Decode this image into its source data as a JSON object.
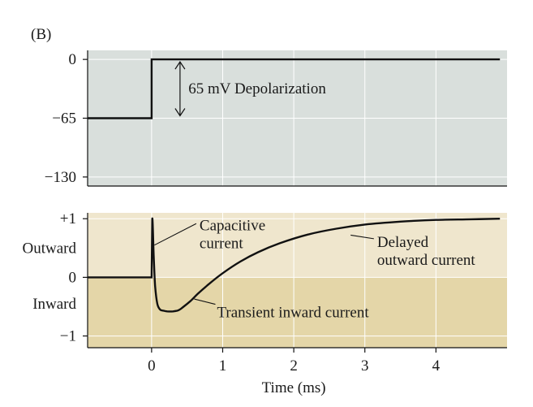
{
  "panel_label": "(B)",
  "colors": {
    "top_panel_bg": "#d9dfdc",
    "bottom_upper_bg": "#efe6cd",
    "bottom_lower_bg": "#e4d6a8",
    "grid": "#ffffff",
    "trace": "#111111",
    "axis": "#111111"
  },
  "chart_data": [
    {
      "type": "line",
      "name": "voltage",
      "xlim": [
        -0.9,
        5.0
      ],
      "ylim": [
        -140,
        10
      ],
      "yticks": [
        {
          "value": 0,
          "label": "0"
        },
        {
          "value": -65,
          "label": "−65"
        },
        {
          "value": -130,
          "label": "−130"
        }
      ],
      "grid": true,
      "series": [
        {
          "x": [
            -0.9,
            0,
            0,
            4.9
          ],
          "y": [
            -65,
            -65,
            0,
            0
          ]
        }
      ],
      "annotations": [
        {
          "text": "65 mV Depolarization",
          "x": 0.45,
          "y": -32,
          "arrow_from_y": 0,
          "arrow_to_y": -65,
          "arrow_x": 0.4
        }
      ]
    },
    {
      "type": "line",
      "name": "current",
      "xlim": [
        -0.9,
        5.0
      ],
      "ylim": [
        -1.2,
        1.1
      ],
      "yticks": [
        {
          "value": 1,
          "label": "+1"
        },
        {
          "value": 0,
          "label": "0"
        },
        {
          "value": -1,
          "label": "−1"
        }
      ],
      "ylabels_side": [
        {
          "text": "Outward",
          "y": 0.5
        },
        {
          "text": "Inward",
          "y": -0.45
        }
      ],
      "xticks": [
        0,
        1,
        2,
        3,
        4
      ],
      "xlabel": "Time (ms)",
      "grid": true,
      "series": [
        {
          "x": [
            -0.9,
            0,
            0.01,
            0.03,
            0.05,
            0.08,
            0.12,
            0.17,
            0.22,
            0.3,
            0.38,
            0.45,
            0.55,
            0.65,
            0.8,
            1.0,
            1.25,
            1.5,
            1.8,
            2.2,
            2.6,
            3.0,
            3.5,
            4.0,
            4.5,
            4.9
          ],
          "y": [
            0,
            0,
            1.0,
            0.35,
            -0.15,
            -0.45,
            -0.55,
            -0.57,
            -0.58,
            -0.58,
            -0.56,
            -0.5,
            -0.4,
            -0.28,
            -0.12,
            0.07,
            0.27,
            0.43,
            0.58,
            0.73,
            0.83,
            0.9,
            0.95,
            0.98,
            0.99,
            1.0
          ]
        }
      ],
      "annotations": [
        {
          "text": "Capacitive",
          "line2": "current",
          "x": 0.4,
          "y": 0.75
        },
        {
          "text": "Delayed",
          "line2": "outward current",
          "x": 3.15,
          "y": 0.52
        },
        {
          "text": "Transient inward current",
          "x": 0.92,
          "y": -0.57
        }
      ]
    }
  ]
}
